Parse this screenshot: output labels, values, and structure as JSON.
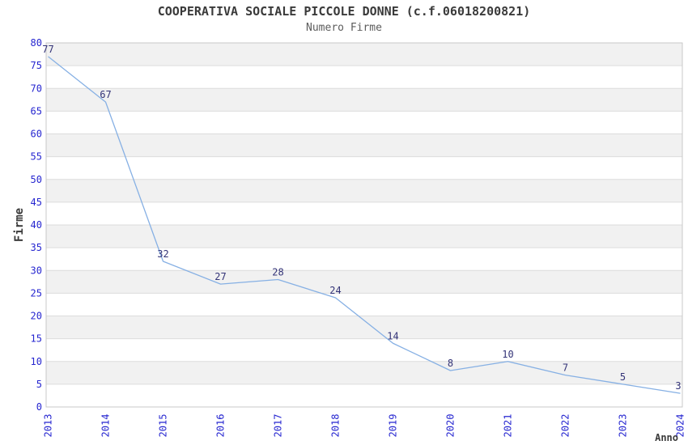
{
  "header": {
    "title": "COOPERATIVA SOCIALE PICCOLE DONNE (c.f.06018200821)",
    "subtitle": "Numero Firme"
  },
  "chart_data": {
    "type": "line",
    "title": "COOPERATIVA SOCIALE PICCOLE DONNE (c.f.06018200821)",
    "subtitle": "Numero Firme",
    "xlabel": "Anno",
    "ylabel": "Firme",
    "categories": [
      "2013",
      "2014",
      "2015",
      "2016",
      "2017",
      "2018",
      "2019",
      "2020",
      "2021",
      "2022",
      "2023",
      "2024"
    ],
    "values": [
      77,
      67,
      32,
      27,
      28,
      24,
      14,
      8,
      10,
      7,
      5,
      3
    ],
    "ylim": [
      0,
      80
    ],
    "ytick_step": 5,
    "grid": "horizontal",
    "alternating_bands": true,
    "point_labels": true,
    "markers": false,
    "legend": "none",
    "x_tick_rotation": -90
  },
  "colors": {
    "line": "#86B0E4",
    "tick_label": "#2626D0",
    "point_label": "#333377",
    "band": "#F1F1F1",
    "gridline": "#DCDCDC",
    "border": "#C8C8C8",
    "title": "#3A3A3A",
    "subtitle": "#5C5C5C",
    "axis_title": "#3A3A3A",
    "background": "#FFFFFF"
  }
}
